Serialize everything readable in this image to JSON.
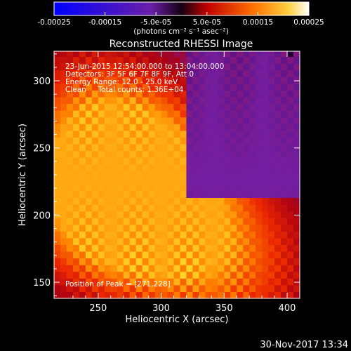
{
  "colorbar": {
    "ticks": [
      "-0.00025",
      "-0.00015",
      "-5.0e-05",
      "5.0e-05",
      "0.00015",
      "0.00025"
    ],
    "unit_label": "(photons cm⁻² s⁻¹ asec⁻²)",
    "range": [
      -0.00025,
      0.00025
    ],
    "colormap": "rainbow (blue → purple → red → orange → yellow → white)"
  },
  "chart_data": {
    "type": "heatmap",
    "title": "Reconstructed RHESSI Image",
    "xlabel": "Heliocentric X (arcsec)",
    "ylabel": "Heliocentric Y (arcsec)",
    "xlim": [
      215,
      410
    ],
    "ylim": [
      138,
      322
    ],
    "xticks": [
      250,
      300,
      350,
      400
    ],
    "yticks": [
      150,
      200,
      250,
      300
    ],
    "peak_position": [
      271,
      228
    ],
    "bright_regions": [
      {
        "x": 270,
        "y": 228,
        "level": "peak"
      },
      {
        "x": 250,
        "y": 205,
        "level": "high"
      },
      {
        "x": 295,
        "y": 218,
        "level": "high"
      },
      {
        "x": 330,
        "y": 175,
        "level": "medium"
      },
      {
        "x": 370,
        "y": 158,
        "level": "medium"
      },
      {
        "x": 240,
        "y": 280,
        "level": "medium"
      }
    ],
    "faint_region": {
      "x_from": 320,
      "y_from": 215,
      "description": "upper-right purple background"
    },
    "annotations": [
      "23-Jun-2015 12:54:00.000 to 13:04:00.000",
      "Detectors: 3F 5F 6F 7F 8F 9F, Att 0",
      "Energy Range: 12.0 - 25.0 keV",
      "Clean     Total counts: 1.36E+04"
    ],
    "peak_label": "Position of Peak = [271,228]",
    "grid": false
  },
  "footer": {
    "timestamp": "30-Nov-2017 13:34"
  }
}
